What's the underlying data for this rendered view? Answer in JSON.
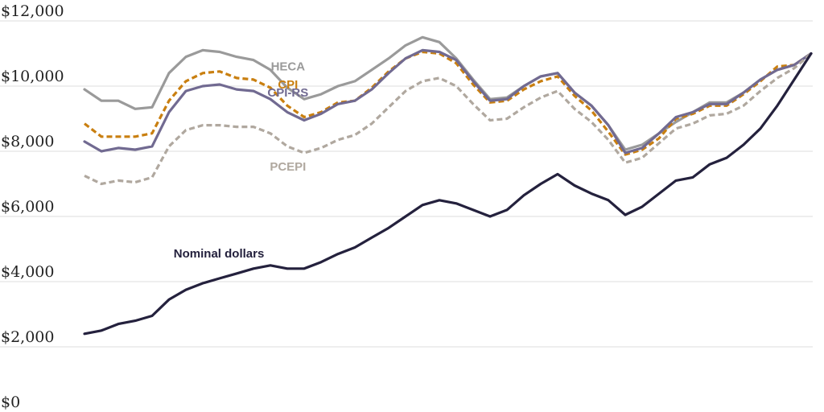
{
  "chart_data": {
    "type": "line",
    "title": "",
    "xlabel": "",
    "ylabel": "",
    "ylim": [
      0,
      12000
    ],
    "grid": true,
    "y_ticks": [
      {
        "value": 0,
        "label": "$0"
      },
      {
        "value": 2000,
        "label": "$2,000"
      },
      {
        "value": 4000,
        "label": "$4,000"
      },
      {
        "value": 6000,
        "label": "$6,000"
      },
      {
        "value": 8000,
        "label": "$8,000"
      },
      {
        "value": 10000,
        "label": "$10,000"
      },
      {
        "value": 12000,
        "label": "$12,000"
      }
    ],
    "series": [
      {
        "name": "HECA",
        "color": "#9a9a9a",
        "dashed": false,
        "label_at": 0.28,
        "label_offset": -26,
        "values": [
          9900,
          9550,
          9550,
          9300,
          9350,
          10400,
          10900,
          11100,
          11050,
          10900,
          10800,
          10500,
          9950,
          9600,
          9750,
          10000,
          10150,
          10500,
          10850,
          11250,
          11500,
          11350,
          10850,
          10200,
          9600,
          9650,
          10000,
          10300,
          10400,
          9800,
          9400,
          8800,
          8050,
          8200,
          8550,
          8900,
          9200,
          9500,
          9500,
          9800,
          10200,
          10500,
          10650,
          11000
        ]
      },
      {
        "name": "CPI",
        "color": "#c97f10",
        "dashed": true,
        "label_at": 0.28,
        "label_offset": -26,
        "values": [
          8850,
          8450,
          8450,
          8450,
          8550,
          9550,
          10150,
          10400,
          10450,
          10250,
          10200,
          9950,
          9400,
          9050,
          9200,
          9500,
          9550,
          9950,
          10450,
          10850,
          11050,
          11000,
          10700,
          10050,
          9500,
          9550,
          9900,
          10150,
          10300,
          9700,
          9250,
          8600,
          7900,
          8050,
          8400,
          9000,
          9150,
          9400,
          9400,
          9750,
          10150,
          10600,
          10650,
          11000
        ]
      },
      {
        "name": "CPI-RS",
        "color": "#716a91",
        "dashed": false,
        "label_at": 0.28,
        "label_offset": -24,
        "values": [
          8300,
          8000,
          8100,
          8050,
          8150,
          9200,
          9850,
          10000,
          10050,
          9900,
          9850,
          9600,
          9200,
          8950,
          9150,
          9450,
          9550,
          9900,
          10400,
          10850,
          11100,
          11050,
          10800,
          10150,
          9550,
          9600,
          10000,
          10300,
          10400,
          9800,
          9400,
          8800,
          7950,
          8100,
          8550,
          9050,
          9200,
          9450,
          9450,
          9800,
          10200,
          10500,
          10650,
          11000
        ]
      },
      {
        "name": "PCEPI",
        "color": "#b0a89f",
        "dashed": true,
        "label_at": 0.28,
        "label_offset": 26,
        "values": [
          7250,
          7000,
          7100,
          7050,
          7200,
          8150,
          8650,
          8800,
          8800,
          8750,
          8750,
          8550,
          8150,
          7950,
          8100,
          8350,
          8500,
          8850,
          9350,
          9850,
          10150,
          10250,
          10000,
          9450,
          8950,
          9000,
          9350,
          9650,
          9850,
          9300,
          8900,
          8350,
          7650,
          7800,
          8250,
          8700,
          8850,
          9100,
          9150,
          9400,
          9850,
          10250,
          10550,
          11000
        ]
      },
      {
        "name": "Nominal dollars",
        "color": "#24213d",
        "dashed": false,
        "label_at": 0.185,
        "label_offset": -30,
        "values": [
          2400,
          2500,
          2700,
          2800,
          2950,
          3450,
          3750,
          3950,
          4100,
          4250,
          4400,
          4500,
          4400,
          4400,
          4600,
          4850,
          5050,
          5350,
          5650,
          6000,
          6350,
          6500,
          6400,
          6200,
          6000,
          6200,
          6650,
          7000,
          7300,
          6950,
          6700,
          6500,
          6050,
          6300,
          6700,
          7100,
          7200,
          7600,
          7800,
          8200,
          8700,
          9400,
          10200,
          11000
        ]
      }
    ]
  }
}
